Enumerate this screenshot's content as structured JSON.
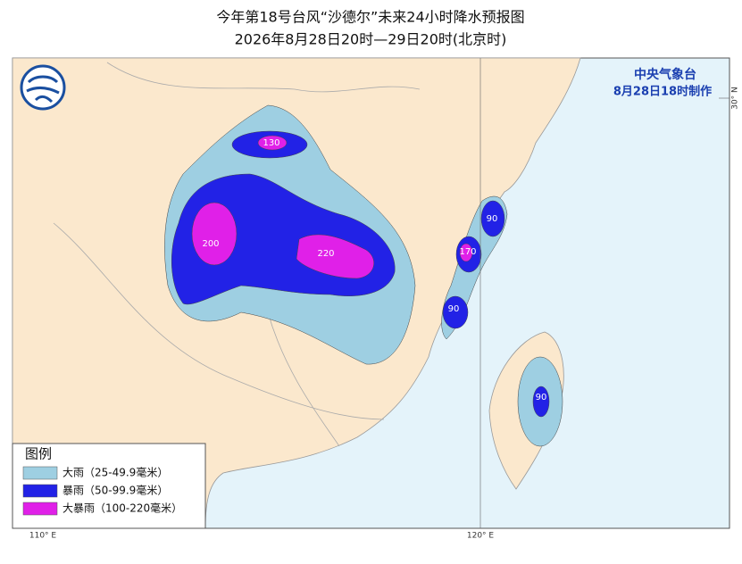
{
  "header": {
    "title": "今年第18号台风“沙德尔”未来24小时降水预报图",
    "subtitle": "2026年8月28日20时—29日20时(北京时)"
  },
  "issuer": {
    "agency": "中央气象台",
    "issued": "8月28日18时制作"
  },
  "legend": {
    "title": "图例",
    "items": [
      {
        "label": "大雨（25-49.9毫米）",
        "color": "#9ecfe2"
      },
      {
        "label": "暴雨（50-99.9毫米）",
        "color": "#2222e6"
      },
      {
        "label": "大暴雨（100-220毫米）",
        "color": "#e020e8"
      }
    ]
  },
  "rain_labels": [
    {
      "value": 130
    },
    {
      "value": 200
    },
    {
      "value": 220
    },
    {
      "value": 90
    },
    {
      "value": 170
    },
    {
      "value": 90
    },
    {
      "value": 90
    }
  ],
  "axis_labels": {
    "lon": [
      "110° E",
      "120° E"
    ],
    "lat": [
      "30° N"
    ]
  }
}
